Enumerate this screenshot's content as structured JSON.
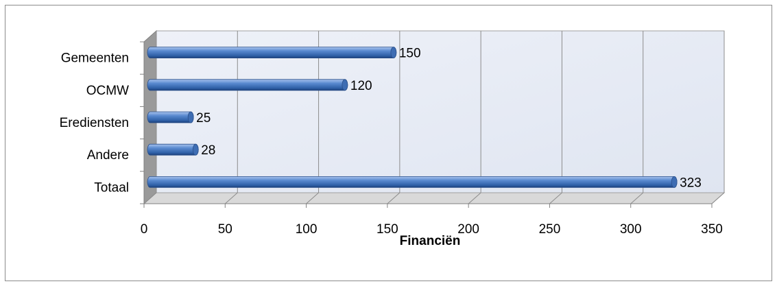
{
  "chart_data": {
    "type": "bar",
    "orientation": "horizontal",
    "x_label": "Financiën",
    "categories": [
      "Gemeenten",
      "OCMW",
      "Erediensten",
      "Andere",
      "Totaal"
    ],
    "values": [
      150,
      120,
      25,
      28,
      323
    ],
    "color": "#4f81bd",
    "xlim": [
      0,
      350
    ],
    "xticks": [
      0,
      50,
      100,
      150,
      200,
      250,
      300,
      350
    ],
    "grid": true
  }
}
